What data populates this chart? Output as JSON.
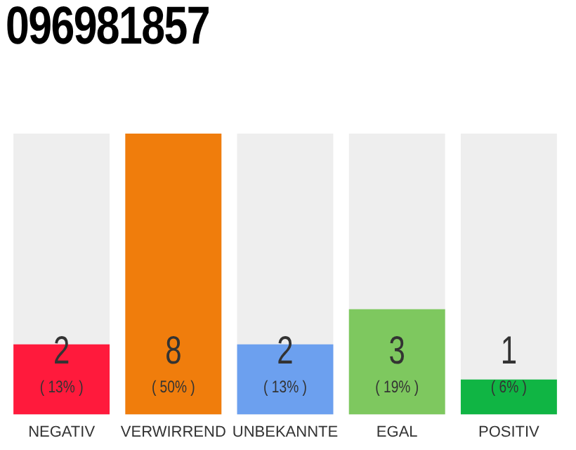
{
  "chart_data": {
    "type": "bar",
    "title": "096981857",
    "categories": [
      "NEGATIV",
      "VERWIRREND",
      "UNBEKANNTE",
      "EGAL",
      "POSITIV"
    ],
    "values": [
      2,
      8,
      2,
      3,
      1
    ],
    "colors": [
      "#ff1a3c",
      "#f07d0c",
      "#6ca0ef",
      "#7ec85f",
      "#10b544"
    ],
    "data_labels": true,
    "grid": false,
    "legend": false,
    "annotations": [
      "( 13% )",
      "( 50% )",
      "( 13% )",
      "( 19% )",
      "( 6% )"
    ]
  }
}
